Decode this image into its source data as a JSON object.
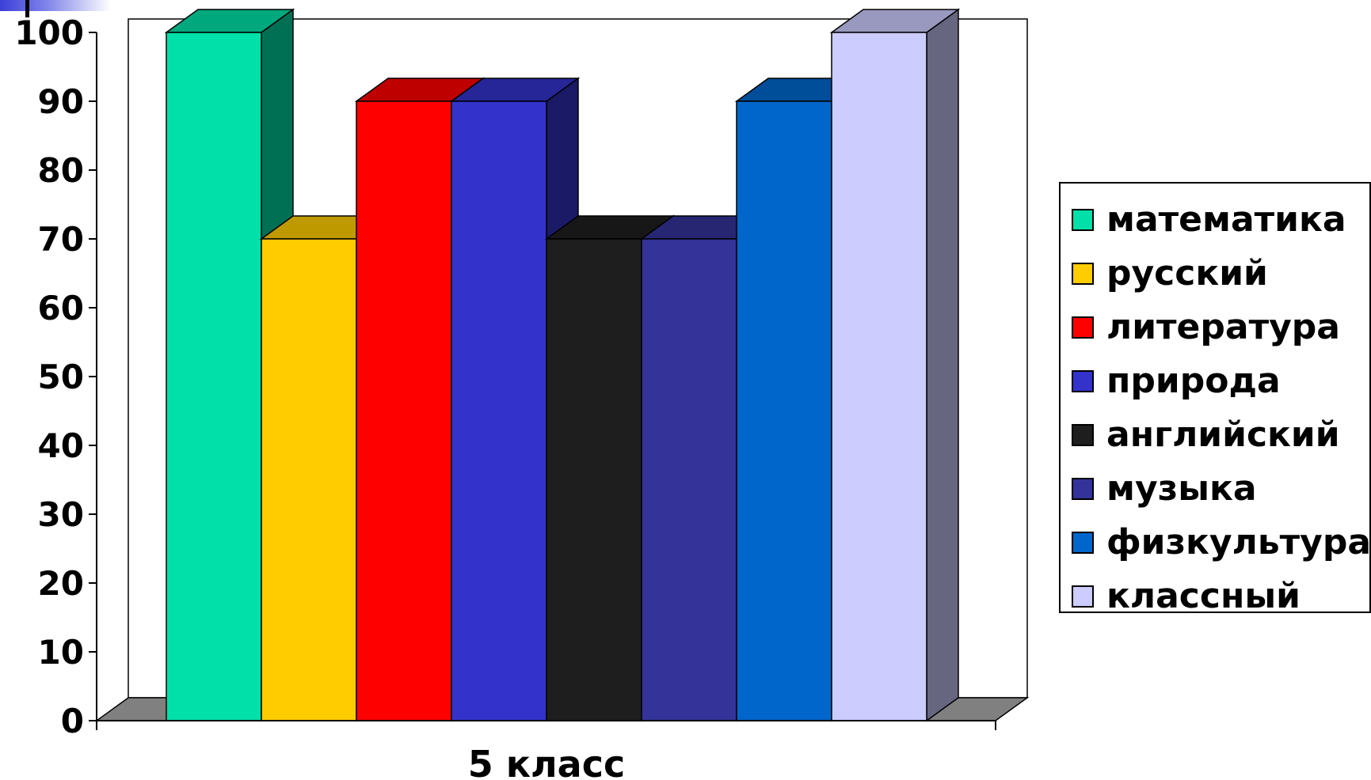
{
  "chart_data": {
    "type": "bar",
    "x": [
      "5 класс"
    ],
    "xlabel": "5 класс",
    "ylabel": "",
    "ylim": [
      0,
      100
    ],
    "yticks": [
      0,
      10,
      20,
      30,
      40,
      50,
      60,
      70,
      80,
      90,
      100
    ],
    "series": [
      {
        "name": "математика",
        "values": [
          100
        ],
        "color": "#00E0A8"
      },
      {
        "name": "русский",
        "values": [
          70
        ],
        "color": "#FFCC00"
      },
      {
        "name": "литература",
        "values": [
          90
        ],
        "color": "#FF0000"
      },
      {
        "name": "природа",
        "values": [
          90
        ],
        "color": "#3333CC"
      },
      {
        "name": "английский",
        "values": [
          70
        ],
        "color": "#1E1E1E"
      },
      {
        "name": "музыка",
        "values": [
          70
        ],
        "color": "#333399"
      },
      {
        "name": "физкультура",
        "values": [
          90
        ],
        "color": "#0066CC"
      },
      {
        "name": "классный",
        "values": [
          100
        ],
        "color": "#CCCCFF"
      }
    ],
    "legend_position": "right",
    "style": "3d-clustered-column"
  }
}
